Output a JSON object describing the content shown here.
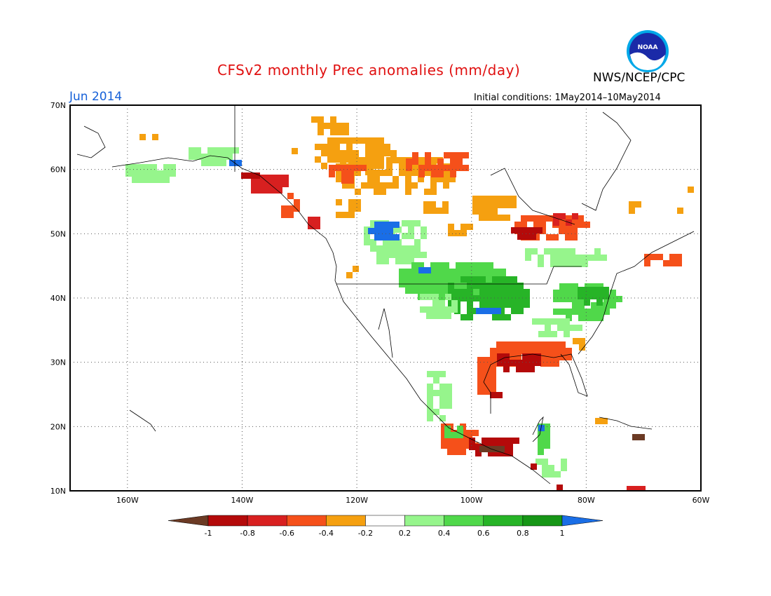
{
  "header": {
    "title": "CFSv2 monthly Prec anomalies (mm/day)",
    "agency": "NWS/NCEP/CPC",
    "month": "Jun 2014",
    "initial_conditions": "Initial conditions: 1May2014–10May2014",
    "logo_text": "NOAA"
  },
  "map": {
    "region": "North America",
    "lon_range": [
      -170,
      -60
    ],
    "lat_range": [
      10,
      70
    ],
    "lat_labels": [
      "70N",
      "60N",
      "50N",
      "40N",
      "30N",
      "20N",
      "10N"
    ],
    "lon_labels": [
      "160W",
      "140W",
      "120W",
      "100W",
      "80W",
      "60W"
    ]
  },
  "legend": {
    "levels": [
      "-1",
      "-0.8",
      "-0.6",
      "-0.4",
      "-0.2",
      "0.2",
      "0.4",
      "0.6",
      "0.8",
      "1"
    ],
    "colors": [
      "#6b3a24",
      "#b40a0a",
      "#d82020",
      "#f5501a",
      "#f5a010",
      "#ffffff",
      "#96f58c",
      "#50d84a",
      "#27b427",
      "#169616",
      "#1a6ee6"
    ]
  }
}
